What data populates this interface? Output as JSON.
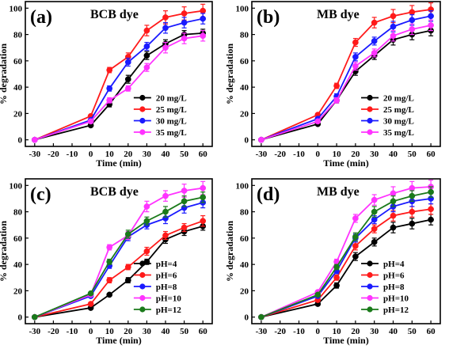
{
  "colors": {
    "black": "#000000",
    "red": "#ff1a1a",
    "blue": "#1a1aff",
    "magenta": "#ff33ff",
    "green": "#1a7a1a"
  },
  "chart_data": [
    {
      "id": "a",
      "type": "line",
      "panel_label": "(a)",
      "title": "BCB dye",
      "xlabel": "Time (min)",
      "ylabel": "% degradation",
      "x": [
        -30,
        0,
        10,
        20,
        30,
        40,
        50,
        60
      ],
      "xlim": [
        -35,
        65
      ],
      "ylim": [
        -5,
        105
      ],
      "xticks": [
        -30,
        -20,
        -10,
        0,
        10,
        20,
        30,
        40,
        50,
        60
      ],
      "yticks": [
        0,
        20,
        40,
        60,
        80,
        100
      ],
      "legend_position": "lower-right",
      "series": [
        {
          "name": "20 mg/L",
          "color": "black",
          "values": [
            0,
            11,
            27,
            46,
            64,
            73,
            80,
            81
          ],
          "err": [
            0,
            1,
            2,
            3,
            3,
            3,
            3,
            3
          ]
        },
        {
          "name": "25 mg/L",
          "color": "red",
          "values": [
            0,
            18,
            53,
            63,
            83,
            93,
            96,
            98
          ],
          "err": [
            0,
            1,
            2,
            3,
            4,
            5,
            5,
            5
          ]
        },
        {
          "name": "30 mg/L",
          "color": "blue",
          "values": [
            0,
            15,
            39,
            59,
            71,
            85,
            89,
            92
          ],
          "err": [
            0,
            1,
            2,
            3,
            3,
            4,
            4,
            4
          ]
        },
        {
          "name": "35 mg/L",
          "color": "magenta",
          "values": [
            0,
            14,
            30,
            39,
            55,
            70,
            77,
            79
          ],
          "err": [
            0,
            1,
            2,
            2,
            3,
            4,
            4,
            4
          ]
        }
      ]
    },
    {
      "id": "b",
      "type": "line",
      "panel_label": "(b)",
      "title": "MB dye",
      "xlabel": "Time (min)",
      "ylabel": "% degradation",
      "x": [
        -30,
        0,
        10,
        20,
        30,
        40,
        50,
        60
      ],
      "xlim": [
        -35,
        65
      ],
      "ylim": [
        -5,
        105
      ],
      "xticks": [
        -30,
        -20,
        -10,
        0,
        10,
        20,
        30,
        40,
        50,
        60
      ],
      "yticks": [
        0,
        20,
        40,
        60,
        80,
        100
      ],
      "legend_position": "lower-right",
      "series": [
        {
          "name": "20 mg/L",
          "color": "black",
          "values": [
            0,
            12,
            30,
            52,
            64,
            76,
            80,
            83
          ],
          "err": [
            0,
            1,
            2,
            3,
            3,
            4,
            4,
            4
          ]
        },
        {
          "name": "25 mg/L",
          "color": "red",
          "values": [
            0,
            19,
            41,
            74,
            89,
            94,
            97,
            99
          ],
          "err": [
            0,
            1,
            2,
            3,
            4,
            5,
            5,
            5
          ]
        },
        {
          "name": "30 mg/L",
          "color": "blue",
          "values": [
            0,
            16,
            33,
            63,
            75,
            86,
            91,
            94
          ],
          "err": [
            0,
            1,
            2,
            3,
            3,
            4,
            4,
            4
          ]
        },
        {
          "name": "35 mg/L",
          "color": "magenta",
          "values": [
            0,
            14,
            30,
            56,
            66,
            79,
            84,
            87
          ],
          "err": [
            0,
            1,
            2,
            3,
            3,
            4,
            4,
            4
          ]
        }
      ]
    },
    {
      "id": "c",
      "type": "line",
      "panel_label": "(c)",
      "title": "BCB dye",
      "xlabel": "Time (min)",
      "ylabel": "% degradation",
      "x": [
        -30,
        0,
        10,
        20,
        30,
        40,
        50,
        60
      ],
      "xlim": [
        -35,
        65
      ],
      "ylim": [
        -5,
        105
      ],
      "xticks": [
        -30,
        -20,
        -10,
        0,
        10,
        20,
        30,
        40,
        50,
        60
      ],
      "yticks": [
        0,
        20,
        40,
        60,
        80,
        100
      ],
      "legend_position": "lower-right",
      "series": [
        {
          "name": "pH=4",
          "color": "black",
          "values": [
            0,
            7,
            17,
            28,
            42,
            59,
            65,
            69
          ],
          "err": [
            0,
            1,
            1,
            2,
            2,
            3,
            3,
            3
          ]
        },
        {
          "name": "pH=6",
          "color": "red",
          "values": [
            0,
            10,
            28,
            38,
            50,
            62,
            68,
            73
          ],
          "err": [
            0,
            1,
            2,
            2,
            3,
            3,
            3,
            4
          ]
        },
        {
          "name": "pH=8",
          "color": "blue",
          "values": [
            0,
            16,
            39,
            61,
            70,
            75,
            83,
            87
          ],
          "err": [
            0,
            1,
            2,
            3,
            3,
            4,
            4,
            4
          ]
        },
        {
          "name": "pH=10",
          "color": "magenta",
          "values": [
            0,
            17,
            53,
            62,
            84,
            92,
            96,
            98
          ],
          "err": [
            0,
            1,
            2,
            3,
            4,
            4,
            5,
            5
          ]
        },
        {
          "name": "pH=12",
          "color": "green",
          "values": [
            0,
            18,
            42,
            63,
            73,
            80,
            88,
            91
          ],
          "err": [
            0,
            1,
            2,
            3,
            3,
            4,
            4,
            4
          ]
        }
      ]
    },
    {
      "id": "d",
      "type": "line",
      "panel_label": "(d)",
      "title": "MB dye",
      "xlabel": "Time (min)",
      "ylabel": "% degradation",
      "x": [
        -30,
        0,
        10,
        20,
        30,
        40,
        50,
        60
      ],
      "xlim": [
        -35,
        65
      ],
      "ylim": [
        -5,
        105
      ],
      "xticks": [
        -30,
        -20,
        -10,
        0,
        10,
        20,
        30,
        40,
        50,
        60
      ],
      "yticks": [
        0,
        20,
        40,
        60,
        80,
        100
      ],
      "legend_position": "lower-right",
      "series": [
        {
          "name": "pH=4",
          "color": "black",
          "values": [
            0,
            10,
            24,
            46,
            57,
            68,
            71,
            74
          ],
          "err": [
            0,
            1,
            2,
            3,
            3,
            4,
            4,
            4
          ]
        },
        {
          "name": "pH=6",
          "color": "red",
          "values": [
            0,
            13,
            30,
            54,
            67,
            77,
            80,
            82
          ],
          "err": [
            0,
            1,
            2,
            3,
            3,
            4,
            4,
            4
          ]
        },
        {
          "name": "pH=8",
          "color": "blue",
          "values": [
            0,
            16,
            35,
            60,
            74,
            84,
            88,
            90
          ],
          "err": [
            0,
            1,
            2,
            3,
            3,
            4,
            4,
            4
          ]
        },
        {
          "name": "pH=10",
          "color": "magenta",
          "values": [
            0,
            19,
            42,
            75,
            89,
            94,
            98,
            99
          ],
          "err": [
            0,
            1,
            2,
            3,
            4,
            5,
            5,
            5
          ]
        },
        {
          "name": "pH=12",
          "color": "green",
          "values": [
            0,
            17,
            38,
            61,
            80,
            88,
            92,
            95
          ],
          "err": [
            0,
            1,
            2,
            3,
            4,
            4,
            4,
            4
          ]
        }
      ]
    }
  ]
}
